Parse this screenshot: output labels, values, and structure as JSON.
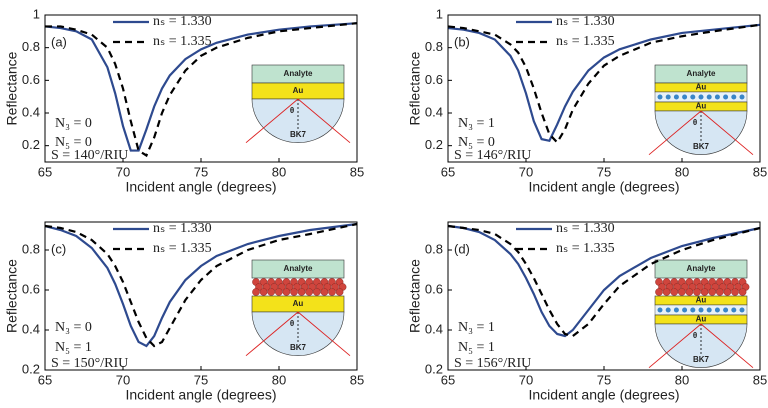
{
  "chart_data": [
    {
      "type": "line",
      "x_label": "Incident angle (degrees)",
      "y_label": "Reflectance",
      "x": [
        65,
        66,
        67,
        68,
        69,
        69.5,
        70,
        70.5,
        71,
        71.5,
        72,
        72.5,
        73,
        74,
        75,
        76,
        78,
        80,
        82,
        85
      ],
      "series": [
        {
          "name": "nₛ = 1.330",
          "color": "#2e4a8f",
          "values": [
            0.93,
            0.92,
            0.9,
            0.85,
            0.68,
            0.52,
            0.32,
            0.17,
            0.17,
            0.3,
            0.44,
            0.55,
            0.63,
            0.73,
            0.79,
            0.83,
            0.88,
            0.91,
            0.93,
            0.95
          ]
        },
        {
          "name": "nₛ = 1.335",
          "color": "#000000",
          "values": [
            0.93,
            0.93,
            0.91,
            0.88,
            0.8,
            0.7,
            0.55,
            0.35,
            0.17,
            0.14,
            0.25,
            0.4,
            0.51,
            0.66,
            0.75,
            0.8,
            0.86,
            0.9,
            0.92,
            0.95
          ]
        }
      ],
      "xlim": [
        65,
        85
      ],
      "xticks": [
        65,
        70,
        75,
        80,
        85
      ],
      "ylim": [
        0.1,
        1
      ],
      "yticks": [
        0.2,
        0.4,
        0.6,
        0.8,
        1
      ],
      "annotations": [
        "(a)",
        "N₃ = 0",
        "N₅ = 0",
        "S = 140°/RIU"
      ],
      "inset_labels": [
        "Analyte",
        "Au",
        "θ",
        "BK7"
      ]
    },
    {
      "type": "line",
      "x_label": "Incident angle (degrees)",
      "y_label": "Reflectance",
      "x": [
        65,
        66,
        67,
        68,
        69,
        69.5,
        70,
        70.5,
        71,
        71.5,
        72,
        72.5,
        73,
        74,
        75,
        76,
        78,
        80,
        82,
        85
      ],
      "series": [
        {
          "name": "nₛ = 1.330",
          "color": "#2e4a8f",
          "values": [
            0.92,
            0.91,
            0.89,
            0.85,
            0.75,
            0.66,
            0.52,
            0.35,
            0.24,
            0.23,
            0.33,
            0.44,
            0.53,
            0.66,
            0.74,
            0.79,
            0.85,
            0.89,
            0.91,
            0.94
          ]
        },
        {
          "name": "nₛ = 1.335",
          "color": "#000000",
          "values": [
            0.93,
            0.92,
            0.9,
            0.88,
            0.82,
            0.77,
            0.68,
            0.55,
            0.4,
            0.27,
            0.22,
            0.3,
            0.42,
            0.58,
            0.69,
            0.75,
            0.83,
            0.87,
            0.9,
            0.94
          ]
        }
      ],
      "xlim": [
        65,
        85
      ],
      "xticks": [
        65,
        70,
        75,
        80,
        85
      ],
      "ylim": [
        0.1,
        1
      ],
      "yticks": [
        0.2,
        0.4,
        0.6,
        0.8,
        1
      ],
      "annotations": [
        "(b)",
        "N₃ = 1",
        "N₅ = 0",
        "S = 146°/RIU"
      ],
      "inset_labels": [
        "Analyte",
        "Au",
        "Au",
        "θ",
        "BK7"
      ]
    },
    {
      "type": "line",
      "x_label": "Incident angle (degrees)",
      "y_label": "Reflectance",
      "x": [
        65,
        66,
        67,
        68,
        69,
        69.5,
        70,
        70.5,
        71,
        71.5,
        72,
        72.5,
        73,
        74,
        75,
        76,
        78,
        80,
        82,
        85
      ],
      "series": [
        {
          "name": "nₛ = 1.330",
          "color": "#2e4a8f",
          "values": [
            0.92,
            0.9,
            0.87,
            0.81,
            0.71,
            0.63,
            0.53,
            0.42,
            0.34,
            0.32,
            0.37,
            0.46,
            0.54,
            0.65,
            0.72,
            0.77,
            0.83,
            0.87,
            0.9,
            0.93
          ]
        },
        {
          "name": "nₛ = 1.335",
          "color": "#000000",
          "values": [
            0.92,
            0.91,
            0.89,
            0.85,
            0.78,
            0.72,
            0.64,
            0.54,
            0.44,
            0.36,
            0.32,
            0.34,
            0.41,
            0.55,
            0.65,
            0.72,
            0.8,
            0.85,
            0.88,
            0.93
          ]
        }
      ],
      "xlim": [
        65,
        85
      ],
      "xticks": [
        65,
        70,
        75,
        80,
        85
      ],
      "ylim": [
        0.2,
        0.94
      ],
      "yticks": [
        0.2,
        0.4,
        0.6,
        0.8
      ],
      "annotations": [
        "(c)",
        "N₃ = 0",
        "N₅ = 1",
        "S = 150°/RIU"
      ],
      "inset_labels": [
        "Analyte",
        "Au",
        "θ",
        "BK7"
      ]
    },
    {
      "type": "line",
      "x_label": "Incident angle (degrees)",
      "y_label": "Reflectance",
      "x": [
        65,
        66,
        67,
        68,
        69,
        69.5,
        70,
        70.5,
        71,
        71.5,
        72,
        72.5,
        73,
        74,
        75,
        76,
        78,
        80,
        82,
        85
      ],
      "series": [
        {
          "name": "nₛ = 1.330",
          "color": "#2e4a8f",
          "values": [
            0.92,
            0.91,
            0.89,
            0.85,
            0.78,
            0.73,
            0.66,
            0.58,
            0.49,
            0.42,
            0.38,
            0.37,
            0.4,
            0.5,
            0.6,
            0.67,
            0.76,
            0.82,
            0.86,
            0.91
          ]
        },
        {
          "name": "nₛ = 1.335",
          "color": "#000000",
          "values": [
            0.92,
            0.91,
            0.9,
            0.88,
            0.83,
            0.79,
            0.73,
            0.66,
            0.58,
            0.5,
            0.43,
            0.38,
            0.37,
            0.43,
            0.53,
            0.62,
            0.73,
            0.8,
            0.85,
            0.91
          ]
        }
      ],
      "xlim": [
        65,
        85
      ],
      "xticks": [
        65,
        70,
        75,
        80,
        85
      ],
      "ylim": [
        0.2,
        0.94
      ],
      "yticks": [
        0.2,
        0.4,
        0.6,
        0.8
      ],
      "annotations": [
        "(d)",
        "N₃ = 1",
        "N₅ = 1",
        "S = 156°/RIU"
      ],
      "inset_labels": [
        "Analyte",
        "Au",
        "Au",
        "θ",
        "BK7"
      ]
    }
  ]
}
